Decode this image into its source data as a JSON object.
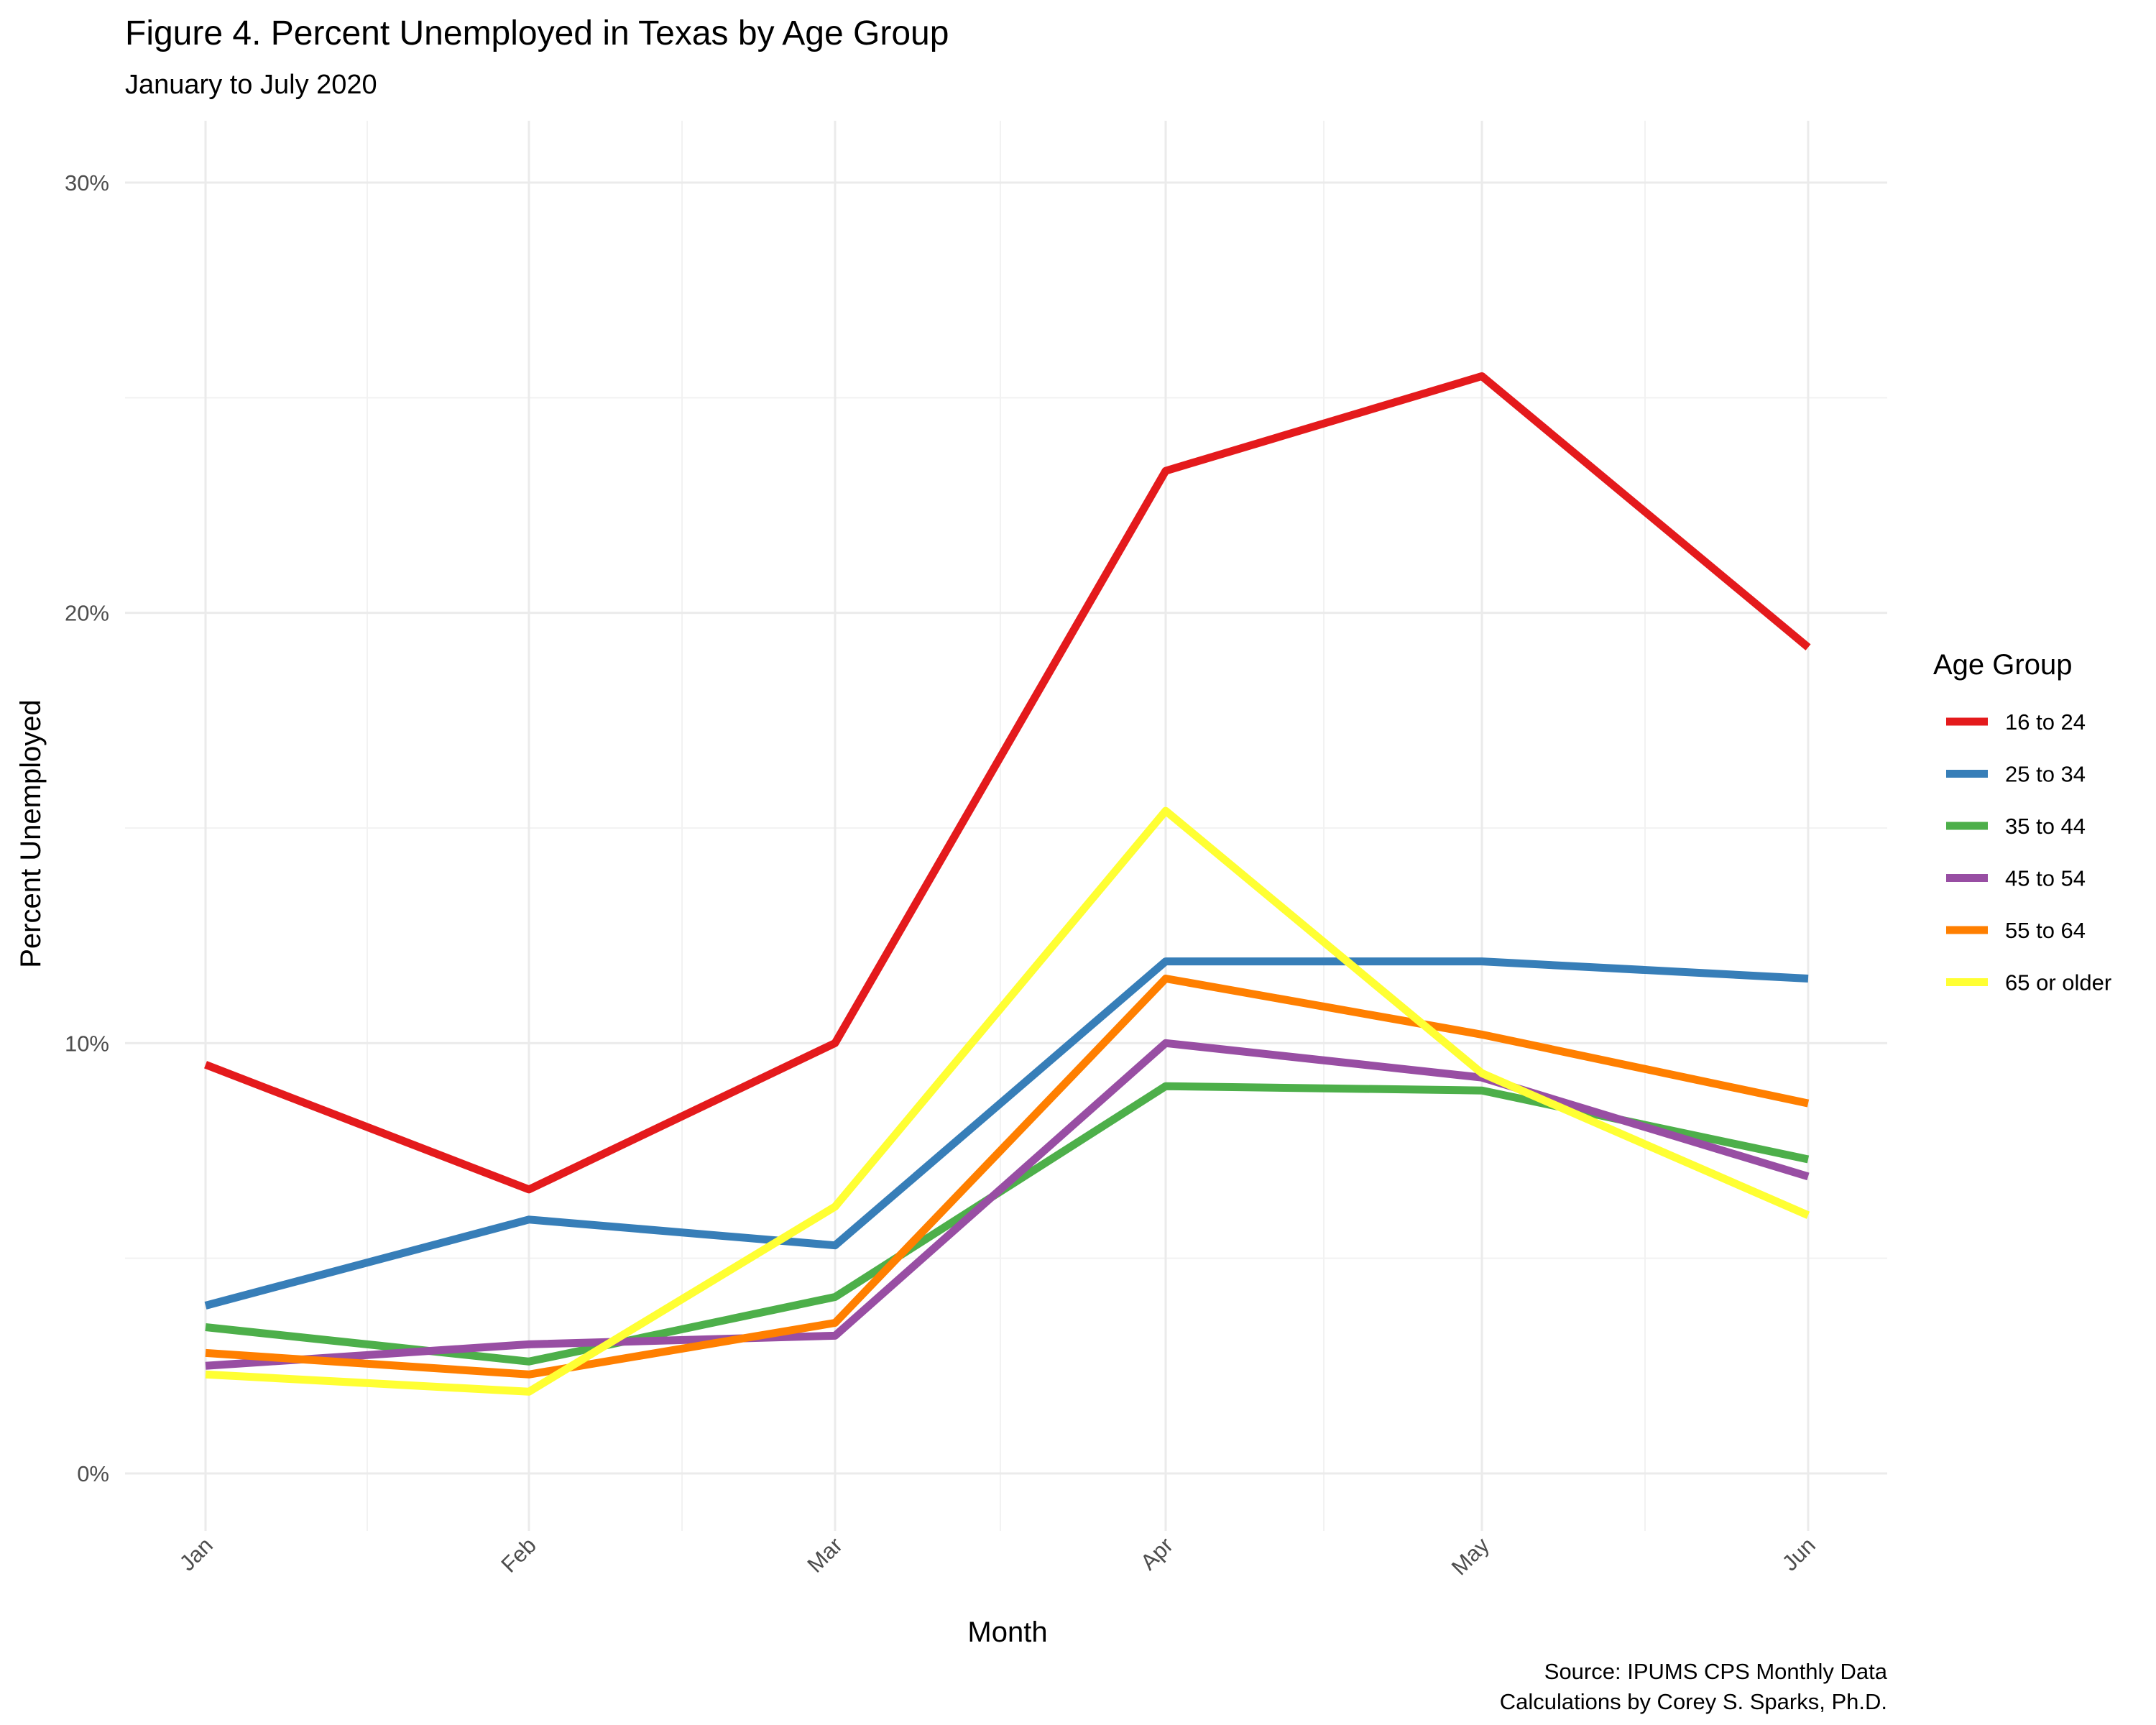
{
  "chart_data": {
    "type": "line",
    "title": "Figure 4. Percent Unemployed in Texas by  Age Group",
    "subtitle": "January to July 2020",
    "xlabel": "Month",
    "ylabel": "Percent Unemployed",
    "categories": [
      "Jan",
      "Feb",
      "Mar",
      "Apr",
      "May",
      "Jun"
    ],
    "y_ticks": [
      0,
      10,
      20,
      30
    ],
    "y_tick_labels": [
      "0%",
      "10%",
      "20%",
      "30%"
    ],
    "ylim": [
      -1,
      31
    ],
    "grid": true,
    "legend": {
      "title": "Age Group",
      "position": "right"
    },
    "series": [
      {
        "name": "16 to 24",
        "color": "#e41a1c",
        "values": [
          9.5,
          6.6,
          10.0,
          23.3,
          25.5,
          19.2
        ]
      },
      {
        "name": "25 to 34",
        "color": "#377eb8",
        "values": [
          3.9,
          5.9,
          5.3,
          11.9,
          11.9,
          11.5
        ]
      },
      {
        "name": "35 to 44",
        "color": "#4daf4a",
        "values": [
          3.4,
          2.6,
          4.1,
          9.0,
          8.9,
          7.3
        ]
      },
      {
        "name": "45 to 54",
        "color": "#984ea3",
        "values": [
          2.5,
          3.0,
          3.2,
          10.0,
          9.2,
          6.9
        ]
      },
      {
        "name": "55 to 64",
        "color": "#ff7f00",
        "values": [
          2.8,
          2.3,
          3.5,
          11.5,
          10.2,
          8.6
        ]
      },
      {
        "name": "65 or older",
        "color": "#ffff33",
        "values": [
          2.3,
          1.9,
          6.2,
          15.4,
          9.3,
          6.0
        ]
      }
    ],
    "caption": [
      "Source: IPUMS CPS Monthly Data",
      "Calculations by Corey S. Sparks, Ph.D."
    ]
  }
}
